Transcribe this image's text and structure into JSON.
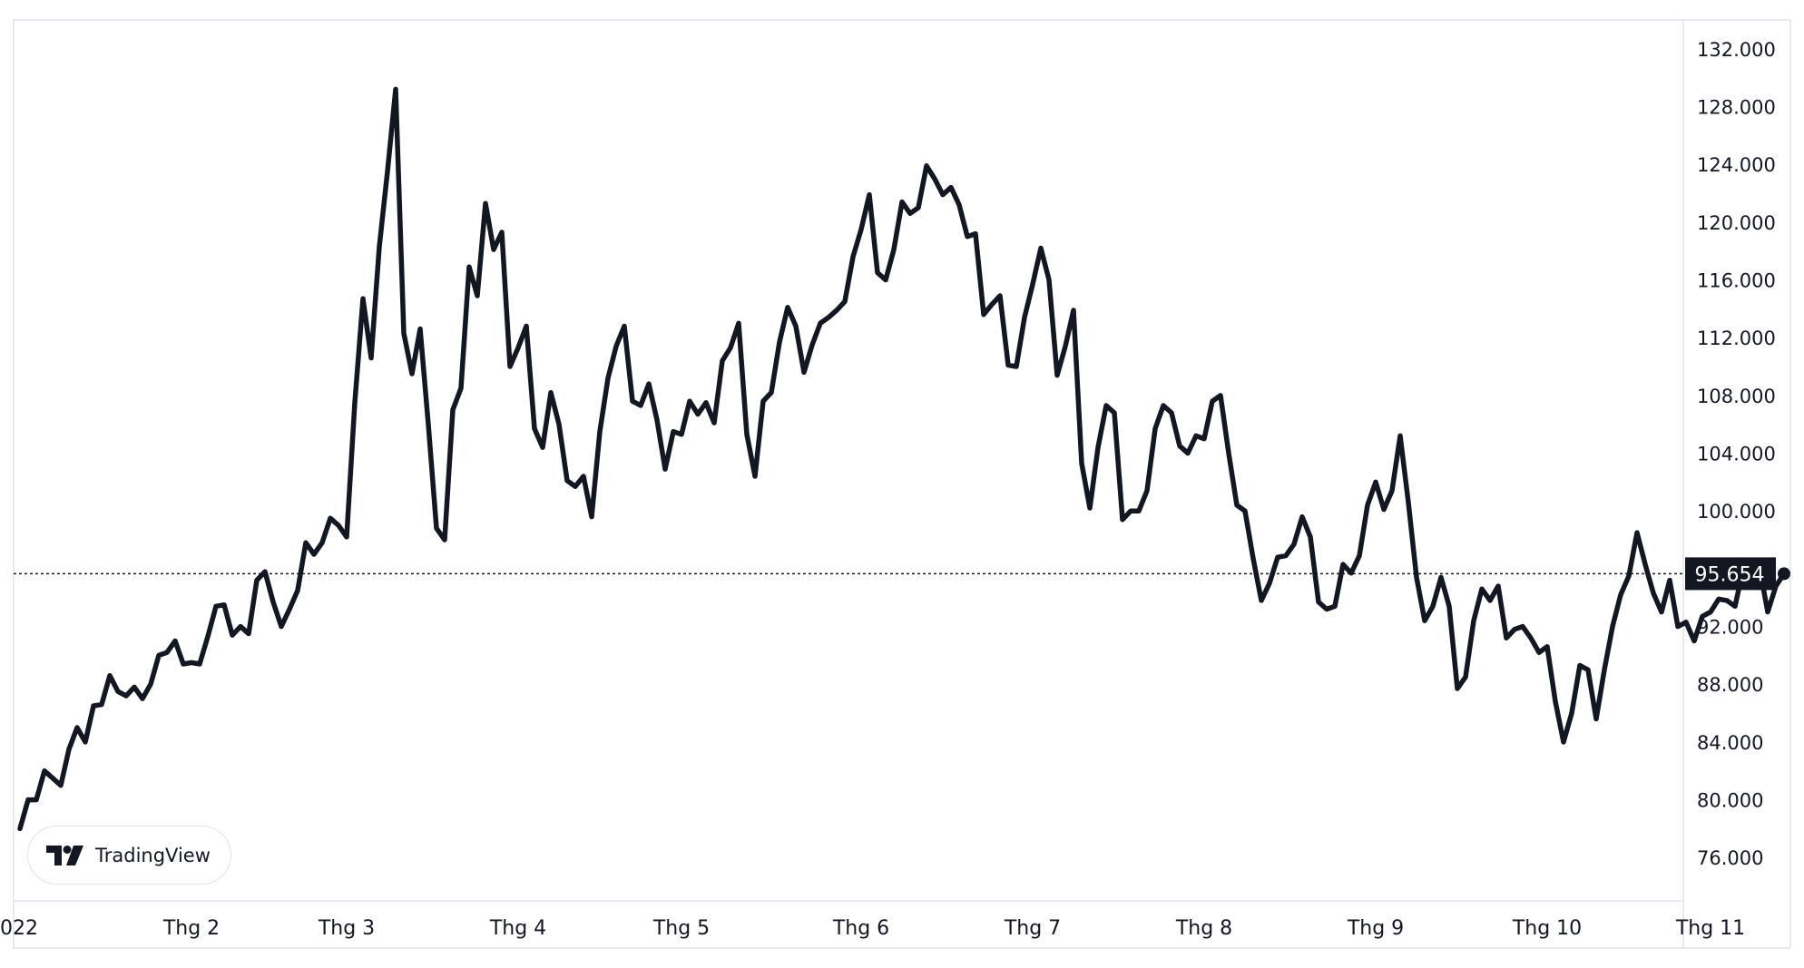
{
  "chart_data": {
    "type": "line",
    "x_axis": {
      "tick_labels": [
        "022",
        "Thg 2",
        "Thg 3",
        "Thg 4",
        "Thg 5",
        "Thg 6",
        "Thg 7",
        "Thg 8",
        "Thg 9",
        "Thg 10",
        "Thg 11"
      ],
      "tick_positions": [
        0,
        21,
        40,
        61,
        81,
        103,
        124,
        145,
        166,
        187,
        207
      ]
    },
    "y_axis": {
      "position": "right",
      "range": [
        73000,
        134000
      ],
      "tick_values": [
        76000,
        80000,
        84000,
        88000,
        92000,
        96000,
        100000,
        104000,
        108000,
        112000,
        116000,
        120000,
        124000,
        128000,
        132000
      ],
      "tick_labels": [
        "76.000",
        "80.000",
        "84.000",
        "88.000",
        "92.000",
        "",
        "100.000",
        "104.000",
        "108.000",
        "112.000",
        "116.000",
        "120.000",
        "124.000",
        "128.000",
        "132.000"
      ]
    },
    "last_price": 95654,
    "last_price_label": "95.654",
    "series": [
      {
        "color": "#131722",
        "values": [
          78000,
          80000,
          80000,
          82000,
          81500,
          81000,
          83500,
          85000,
          84000,
          86500,
          86600,
          88600,
          87500,
          87200,
          87800,
          87000,
          88000,
          90000,
          90200,
          91000,
          89400,
          89500,
          89400,
          91300,
          93400,
          93500,
          91400,
          92000,
          91500,
          95200,
          95800,
          93700,
          92000,
          93200,
          94500,
          97800,
          97000,
          97800,
          99500,
          99000,
          98200,
          107500,
          114700,
          110600,
          118300,
          123500,
          129200,
          112300,
          109500,
          112600,
          106000,
          98800,
          98000,
          107000,
          108500,
          116900,
          114900,
          121300,
          118100,
          119300,
          110000,
          111300,
          112800,
          105700,
          104400,
          108200,
          106000,
          102100,
          101700,
          102400,
          99600,
          105500,
          109200,
          111400,
          112800,
          107600,
          107300,
          108800,
          106300,
          102900,
          105500,
          105300,
          107600,
          106700,
          107500,
          106100,
          110400,
          111300,
          113000,
          105300,
          102400,
          107600,
          108200,
          111700,
          114100,
          112800,
          109600,
          111500,
          113000,
          113400,
          113900,
          114500,
          117600,
          119500,
          121900,
          116500,
          116000,
          118100,
          121400,
          120600,
          121000,
          123900,
          123000,
          121900,
          122400,
          121200,
          119000,
          119200,
          113600,
          114300,
          114900,
          110100,
          110000,
          113400,
          115700,
          118200,
          116000,
          109400,
          111400,
          113900,
          103300,
          100200,
          104400,
          107300,
          106800,
          99400,
          100000,
          100000,
          101400,
          105700,
          107300,
          106800,
          104500,
          104000,
          105200,
          105000,
          107600,
          108000,
          104000,
          100400,
          100000,
          96700,
          93800,
          95000,
          96800,
          96900,
          97700,
          99600,
          98200,
          93700,
          93200,
          93400,
          96300,
          95700,
          96900,
          100400,
          102000,
          100100,
          101400,
          105200,
          100600,
          95400,
          92400,
          93400,
          95400,
          93400,
          87700,
          88500,
          92400,
          94600,
          93800,
          94800,
          91200,
          91800,
          92000,
          91200,
          90200,
          90600,
          86800,
          84000,
          86000,
          89300,
          89000,
          85600,
          89000,
          92000,
          94200,
          95500,
          98500,
          96300,
          94300,
          93000,
          95200,
          92000,
          92300,
          91000,
          92700,
          93000,
          93900,
          93800,
          93400,
          96000,
          96500,
          96100,
          93000,
          94800,
          95654
        ]
      }
    ],
    "brand_label": "TradingView",
    "colors": {
      "line": "#131722",
      "background": "#ffffff",
      "border": "#e0e3eb",
      "price_badge": "#131722"
    }
  }
}
